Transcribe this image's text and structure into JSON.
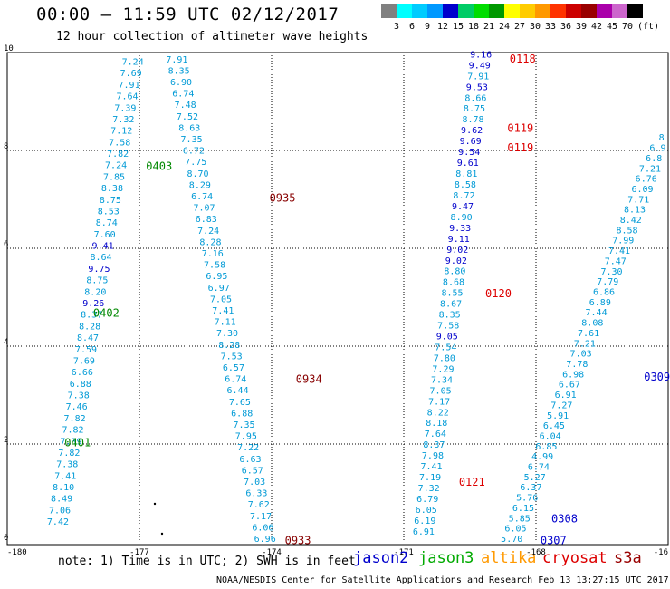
{
  "header": {
    "title": "00:00 – 11:59 UTC 02/12/2017",
    "subtitle": "12 hour collection of altimeter wave heights"
  },
  "color_scale": {
    "unit": "(ft)",
    "bins": [
      {
        "color": "#808080",
        "label": ""
      },
      {
        "color": "#00ffff",
        "label": "3"
      },
      {
        "color": "#00ccff",
        "label": "6"
      },
      {
        "color": "#0099ff",
        "label": "9"
      },
      {
        "color": "#0000cc",
        "label": "12"
      },
      {
        "color": "#00cc66",
        "label": "15"
      },
      {
        "color": "#00dd00",
        "label": "18"
      },
      {
        "color": "#009900",
        "label": "21"
      },
      {
        "color": "#ffff00",
        "label": "24"
      },
      {
        "color": "#ffcc00",
        "label": "27"
      },
      {
        "color": "#ff9900",
        "label": "30"
      },
      {
        "color": "#ff3300",
        "label": "33"
      },
      {
        "color": "#cc0000",
        "label": "36"
      },
      {
        "color": "#990000",
        "label": "39"
      },
      {
        "color": "#aa00aa",
        "label": "42"
      },
      {
        "color": "#cc66cc",
        "label": "45"
      },
      {
        "color": "#000000",
        "label": "70"
      }
    ]
  },
  "map": {
    "lon_ticks": [
      "-180",
      "-177",
      "-174",
      "-171",
      "-168",
      "-16"
    ],
    "lat_ticks": [
      "0",
      "2",
      "4",
      "6",
      "8",
      "10"
    ],
    "xlim": [
      -180,
      -165
    ],
    "ylim": [
      0,
      10
    ],
    "tracks": [
      {
        "satellite": "jason3",
        "start": [
          -178.85,
          0.35
        ],
        "end": [
          -177.15,
          9.75
        ],
        "values": [
          "7.42",
          "7.06",
          "8.49",
          "8.10",
          "7.41",
          "7.38",
          "7.82",
          "7.39",
          "7.82",
          "7.82",
          "7.46",
          "7.38",
          "6.88",
          "6.66",
          "7.69",
          "7.59",
          "8.47",
          "8.28",
          "8.37",
          "9.26",
          "8.20",
          "8.75",
          "9.75",
          "8.64",
          "9.41",
          "7.60",
          "8.74",
          "8.53",
          "8.75",
          "8.38",
          "7.85",
          "7.24",
          "7.82",
          "7.58",
          "7.12",
          "7.32",
          "7.39",
          "7.64",
          "7.91",
          "7.69",
          "7.24"
        ]
      },
      {
        "satellite": "jason3",
        "start": [
          -174.15,
          0.0
        ],
        "end": [
          -176.15,
          9.8
        ],
        "values": [
          "6.96",
          "6.06",
          "7.17",
          "7.62",
          "6.33",
          "7.03",
          "6.57",
          "6.63",
          "7.22",
          "7.95",
          "7.35",
          "6.88",
          "7.65",
          "6.44",
          "6.74",
          "6.57",
          "7.53",
          "8.28",
          "7.30",
          "7.11",
          "7.41",
          "7.05",
          "6.97",
          "6.95",
          "7.58",
          "7.16",
          "8.28",
          "7.24",
          "6.83",
          "7.07",
          "6.74",
          "8.29",
          "8.70",
          "7.75",
          "6.72",
          "7.35",
          "8.63",
          "7.52",
          "7.48",
          "6.74",
          "6.90",
          "8.35",
          "7.91"
        ]
      },
      {
        "satellite": "jason2",
        "start": [
          -170.55,
          0.15
        ],
        "end": [
          -169.25,
          9.9
        ],
        "values": [
          "6.91",
          "6.19",
          "6.05",
          "6.79",
          "7.32",
          "7.19",
          "7.41",
          "7.98",
          "8.37",
          "7.64",
          "8.18",
          "8.22",
          "7.17",
          "7.05",
          "7.34",
          "7.29",
          "7.80",
          "7.54",
          "9.05",
          "7.58",
          "8.35",
          "8.67",
          "8.55",
          "8.68",
          "8.80",
          "9.02",
          "9.02",
          "9.11",
          "9.33",
          "8.90",
          "9.47",
          "8.72",
          "8.58",
          "8.81",
          "9.61",
          "9.54",
          "9.69",
          "9.62",
          "8.78",
          "8.75",
          "8.66",
          "9.53",
          "7.91",
          "9.49",
          "9.16"
        ]
      },
      {
        "satellite": "jason2",
        "start": [
          -168.55,
          0.0
        ],
        "end": [
          -165.15,
          8.2
        ],
        "values": [
          "5.70",
          "6.05",
          "5.85",
          "6.15",
          "5.76",
          "6.37",
          "5.27",
          "6.74",
          "4.99",
          "6.85",
          "6.04",
          "6.45",
          "5.91",
          "7.27",
          "6.91",
          "6.67",
          "6.98",
          "7.78",
          "7.03",
          "7.21",
          "7.61",
          "8.08",
          "7.44",
          "6.89",
          "6.86",
          "7.79",
          "7.30",
          "7.47",
          "7.41",
          "7.99",
          "8.58",
          "8.42",
          "8.13",
          "7.71",
          "6.09",
          "6.76",
          "7.21",
          "6.8",
          "6.9",
          "8"
        ]
      }
    ],
    "time_labels": [
      {
        "text": "0401",
        "lon": -178.7,
        "lat": 1.95,
        "satellite": "jason3"
      },
      {
        "text": "0402",
        "lon": -178.05,
        "lat": 4.6,
        "satellite": "jason3"
      },
      {
        "text": "0403",
        "lon": -176.85,
        "lat": 7.6,
        "satellite": "jason3"
      },
      {
        "text": "0933",
        "lon": -173.7,
        "lat": -0.05,
        "satellite": "cryosat"
      },
      {
        "text": "0934",
        "lon": -173.45,
        "lat": 3.25,
        "satellite": "cryosat"
      },
      {
        "text": "0935",
        "lon": -174.05,
        "lat": 6.95,
        "satellite": "cryosat"
      },
      {
        "text": "0118",
        "lon": -168.6,
        "lat": 9.8,
        "satellite": "s3a"
      },
      {
        "text": "0119",
        "lon": -168.65,
        "lat": 8.38,
        "satellite": "s3a"
      },
      {
        "text": "0119",
        "lon": -168.65,
        "lat": 7.98,
        "satellite": "s3a"
      },
      {
        "text": "0120",
        "lon": -169.15,
        "lat": 5.0,
        "satellite": "s3a"
      },
      {
        "text": "0121",
        "lon": -169.75,
        "lat": 1.15,
        "satellite": "s3a"
      },
      {
        "text": "0307",
        "lon": -167.9,
        "lat": -0.05,
        "satellite": "jason2"
      },
      {
        "text": "0308",
        "lon": -167.65,
        "lat": 0.4,
        "satellite": "jason2"
      },
      {
        "text": "0309",
        "lon": -165.55,
        "lat": 3.3,
        "satellite": "jason2"
      }
    ]
  },
  "notes": {
    "text": "note: 1) Time is in UTC; 2) SWH is in feet"
  },
  "satellites": [
    {
      "key": "jason2",
      "label": "jason2",
      "color": "#0000cc"
    },
    {
      "key": "jason3",
      "label": "jason3",
      "color": "#00aa00"
    },
    {
      "key": "altika",
      "label": "altika",
      "color": "#ff9900"
    },
    {
      "key": "cryosat",
      "label": "cryosat",
      "color": "#dd0000"
    },
    {
      "key": "s3a",
      "label": "s3a",
      "color": "#990000"
    }
  ],
  "footer": {
    "credit": "NOAA/NESDIS Center for Satellite Applications and Research   Feb 13 13:27:15 UTC 2017"
  }
}
